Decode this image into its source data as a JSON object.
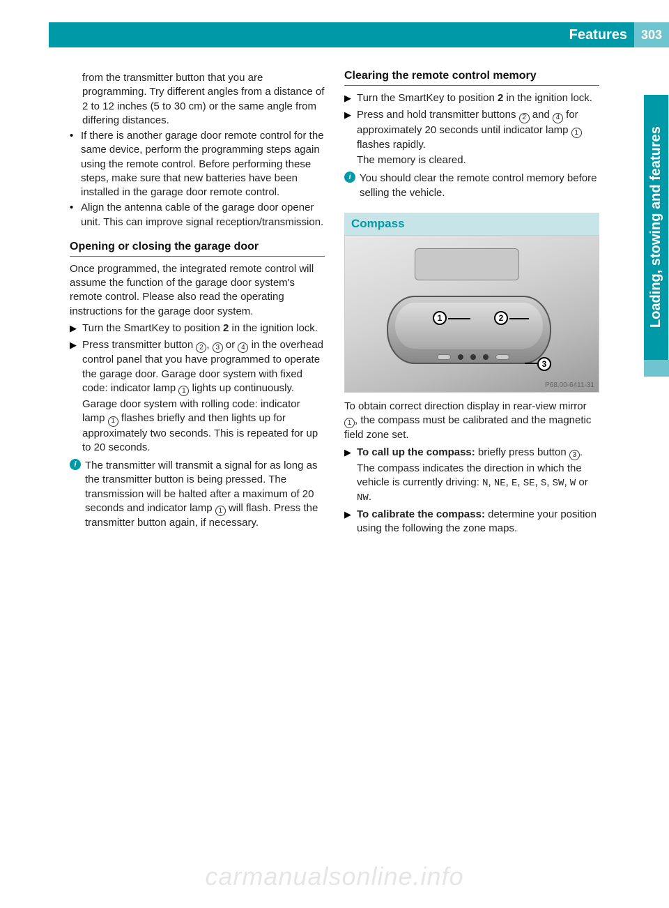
{
  "header": {
    "title": "Features",
    "page": "303"
  },
  "sidetab": "Loading, stowing and features",
  "left": {
    "cont1": "from the transmitter button that you are programming. Try different angles from a distance of 2 to 12 inches (5 to 30 cm) or the same angle from differing distances.",
    "b1": "If there is another garage door remote control for the same device, perform the programming steps again using the remote control. Before performing these steps, make sure that new batteries have been installed in the garage door remote control.",
    "b2": "Align the antenna cable of the garage door opener unit. This can improve signal reception/transmission.",
    "h1": "Opening or closing the garage door",
    "p1": "Once programmed, the integrated remote control will assume the function of the garage door system's remote control. Please also read the operating instructions for the garage door system.",
    "a1a": "Turn the SmartKey to position ",
    "a1b": "2",
    "a1c": " in the ignition lock.",
    "a2a": "Press transmitter button ",
    "a2b": ", ",
    "a2c": " or ",
    "a2d": " in the overhead control panel that you have programmed to operate the garage door. Garage door system with fixed code: indicator lamp ",
    "a2e": " lights up continuously.",
    "a2f": "Garage door system with rolling code: indicator lamp ",
    "a2g": " flashes briefly and then lights up for approximately two seconds. This is repeated for up to 20 seconds.",
    "info1a": "The transmitter will transmit a signal for as long as the transmitter button is being pressed. The transmission will be halted after a maximum of 20 seconds and indicator lamp ",
    "info1b": " will flash. Press the transmitter button again, if necessary."
  },
  "right": {
    "h1": "Clearing the remote control memory",
    "a1a": "Turn the SmartKey to position ",
    "a1b": "2",
    "a1c": " in the ignition lock.",
    "a2a": "Press and hold transmitter buttons ",
    "a2b": " and ",
    "a2c": " for approximately 20 seconds until indicator lamp ",
    "a2d": " flashes rapidly.",
    "a2e": "The memory is cleared.",
    "info1": "You should clear the remote control memory before selling the vehicle.",
    "section": "Compass",
    "fig_code": "P68.00-6411-31",
    "p1a": "To obtain correct direction display in rear-view mirror ",
    "p1b": ", the compass must be calibrated and the magnetic field zone set.",
    "a3a": "To call up the compass:",
    "a3b": " briefly press button ",
    "a3c": ".",
    "a3d": "The compass indicates the direction in which the vehicle is currently driving: ",
    "dirs": [
      "N",
      "NE",
      "E",
      "SE",
      "S",
      "SW",
      "W",
      "NW"
    ],
    "a4a": "To calibrate the compass:",
    "a4b": " determine your position using the following the zone maps."
  },
  "circ": {
    "c1": "1",
    "c2": "2",
    "c3": "3",
    "c4": "4"
  },
  "watermark": "carmanualsonline.info"
}
